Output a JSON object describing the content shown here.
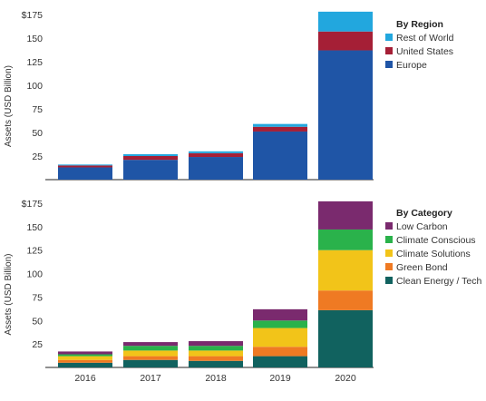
{
  "chart_data": [
    {
      "type": "bar",
      "stacked": true,
      "categories": [
        "2016",
        "2017",
        "2018",
        "2019",
        "2020"
      ],
      "ylabel": "Assets (USD Billion)",
      "ylim": [
        0,
        175
      ],
      "yticks": [
        "25",
        "50",
        "75",
        "100",
        "125",
        "150",
        "$175"
      ],
      "show_x_labels": false,
      "legend_title": "By Region",
      "legend_position": "right",
      "series": [
        {
          "name": "Europe",
          "color": "#1f55a6",
          "values": [
            13,
            21,
            24,
            51,
            137
          ]
        },
        {
          "name": "United States",
          "color": "#a51f36",
          "values": [
            2,
            4,
            4,
            5,
            20
          ]
        },
        {
          "name": "Rest of World",
          "color": "#22a7de",
          "values": [
            1,
            2,
            2,
            3,
            21
          ]
        }
      ]
    },
    {
      "type": "bar",
      "stacked": true,
      "categories": [
        "2016",
        "2017",
        "2018",
        "2019",
        "2020"
      ],
      "ylabel": "Assets (USD Billion)",
      "ylim": [
        0,
        175
      ],
      "yticks": [
        "25",
        "50",
        "75",
        "100",
        "125",
        "150",
        "$175"
      ],
      "show_x_labels": true,
      "legend_title": "By Category",
      "legend_position": "right",
      "series": [
        {
          "name": "Clean Energy / Tech",
          "color": "#11625f",
          "values": [
            5,
            8,
            7,
            12,
            61
          ]
        },
        {
          "name": "Green Bond",
          "color": "#ef7a23",
          "values": [
            3,
            4,
            5,
            10,
            21
          ]
        },
        {
          "name": "Climate Solutions",
          "color": "#f2c419",
          "values": [
            4,
            6,
            6,
            20,
            43
          ]
        },
        {
          "name": "Climate Conscious",
          "color": "#2ab24b",
          "values": [
            2,
            5,
            5,
            8,
            22
          ]
        },
        {
          "name": "Low Carbon",
          "color": "#7a2a6e",
          "values": [
            3,
            4,
            5,
            12,
            30
          ]
        }
      ]
    }
  ]
}
